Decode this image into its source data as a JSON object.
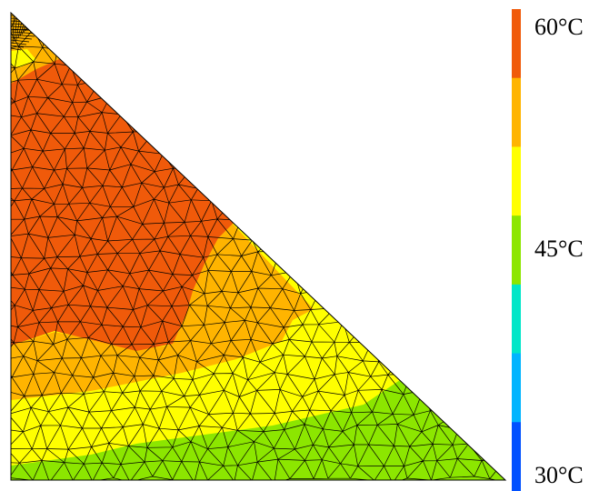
{
  "colorbar": {
    "labels": [
      "60°C",
      "45°C",
      "30°C"
    ],
    "colors": [
      "#f05a0a",
      "#ffb400",
      "#ffff00",
      "#8ce600",
      "#00e6c8",
      "#00b4ff",
      "#0050ff"
    ]
  }
}
